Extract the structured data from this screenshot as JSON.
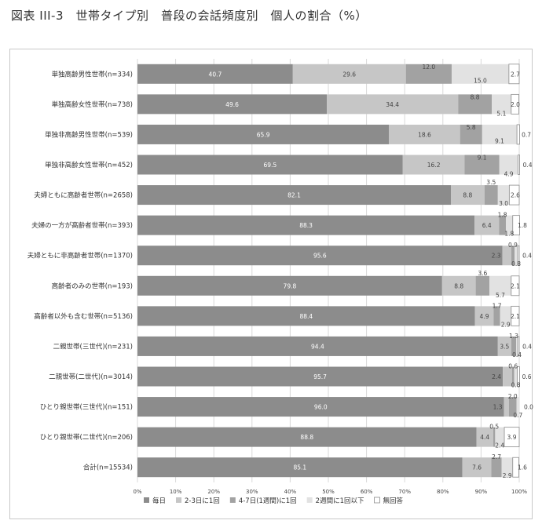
{
  "title": "図表 III-3　世帯タイプ別　普段の会話頻度別　個人の割合（%）",
  "chart_data": {
    "type": "bar",
    "stacked": true,
    "orientation": "horizontal",
    "percent": true,
    "xlim": [
      0,
      100
    ],
    "x_ticks": [
      "0%",
      "10%",
      "20%",
      "30%",
      "40%",
      "50%",
      "60%",
      "70%",
      "80%",
      "90%",
      "100%"
    ],
    "grid": true,
    "legend_position": "bottom",
    "categories": [
      "単独高齢男性世帯(n=334)",
      "単独高齢女性世帯(n=738)",
      "単独非高齢男性世帯(n=539)",
      "単独非高齢女性世帯(n=452)",
      "夫婦ともに高齢者世帯(n=2658)",
      "夫婦の一方が高齢者世帯(n=393)",
      "夫婦ともに非高齢者世帯(n=1370)",
      "高齢者のみの世帯(n=193)",
      "高齢者以外も含む世帯(n=5136)",
      "二親世帯(三世代)(n=231)",
      "二親世帯(二世代)(n=3014)",
      "ひとり親世帯(三世代)(n=151)",
      "ひとり親世帯(二世代)(n=206)",
      "合計(n=15534)"
    ],
    "series": [
      {
        "name": "毎日",
        "color": "#8c8c8c",
        "values": [
          40.7,
          49.6,
          65.9,
          69.5,
          82.1,
          88.3,
          95.6,
          79.8,
          88.4,
          94.4,
          95.7,
          96.0,
          88.8,
          85.1
        ]
      },
      {
        "name": "2-3日に1回",
        "color": "#c6c6c6",
        "values": [
          29.6,
          34.4,
          18.6,
          16.2,
          8.8,
          6.4,
          2.3,
          8.8,
          4.9,
          3.5,
          2.4,
          1.3,
          4.4,
          7.6
        ]
      },
      {
        "name": "4-7日(1週間)に1回",
        "color": "#a2a2a2",
        "values": [
          12.0,
          8.8,
          5.8,
          9.1,
          3.5,
          1.8,
          0.9,
          3.6,
          1.7,
          1.3,
          0.6,
          2.0,
          0.5,
          2.7
        ]
      },
      {
        "name": "2週間に1回以下",
        "color": "#e2e2e2",
        "values": [
          15.0,
          5.1,
          9.1,
          4.9,
          3.0,
          1.8,
          0.8,
          5.7,
          2.9,
          0.4,
          0.8,
          0.7,
          2.4,
          2.9
        ]
      },
      {
        "name": "無回答",
        "color": "#ffffff",
        "stroke": "#8c8c8c",
        "values": [
          2.7,
          2.0,
          0.7,
          0.4,
          2.6,
          1.8,
          0.4,
          2.1,
          2.1,
          0.4,
          0.6,
          0.0,
          3.9,
          1.6
        ]
      }
    ]
  }
}
